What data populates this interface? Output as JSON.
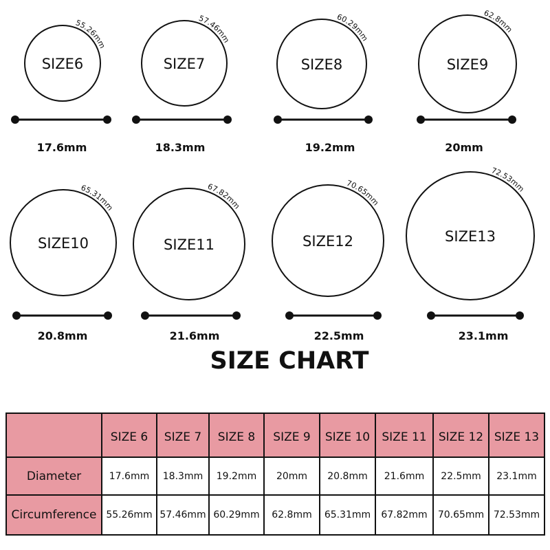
{
  "title": "SIZE CHART",
  "colors": {
    "header_fill": "#e89aa2",
    "stroke": "#111111"
  },
  "rings": [
    {
      "label": "SIZE6",
      "diameter": "17.6mm",
      "circumference": "55.26mm"
    },
    {
      "label": "SIZE7",
      "diameter": "18.3mm",
      "circumference": "57.46mm"
    },
    {
      "label": "SIZE8",
      "diameter": "19.2mm",
      "circumference": "60.29mm"
    },
    {
      "label": "SIZE9",
      "diameter": "20mm",
      "circumference": "62.8mm"
    },
    {
      "label": "SIZE10",
      "diameter": "20.8mm",
      "circumference": "65.31mm"
    },
    {
      "label": "SIZE11",
      "diameter": "21.6mm",
      "circumference": "67.82mm"
    },
    {
      "label": "SIZE12",
      "diameter": "22.5mm",
      "circumference": "70.65mm"
    },
    {
      "label": "SIZE13",
      "diameter": "23.1mm",
      "circumference": "72.53mm"
    }
  ],
  "table": {
    "headers": [
      "",
      "SIZE 6",
      "SIZE 7",
      "SIZE 8",
      "SIZE 9",
      "SIZE 10",
      "SIZE 11",
      "SIZE 12",
      "SIZE 13"
    ],
    "rows": [
      {
        "label": "Diameter",
        "values": [
          "17.6mm",
          "18.3mm",
          "19.2mm",
          "20mm",
          "20.8mm",
          "21.6mm",
          "22.5mm",
          "23.1mm"
        ]
      },
      {
        "label": "Circumference",
        "values": [
          "55.26mm",
          "57.46mm",
          "60.29mm",
          "62.8mm",
          "65.31mm",
          "67.82mm",
          "70.65mm",
          "72.53mm"
        ]
      }
    ]
  }
}
